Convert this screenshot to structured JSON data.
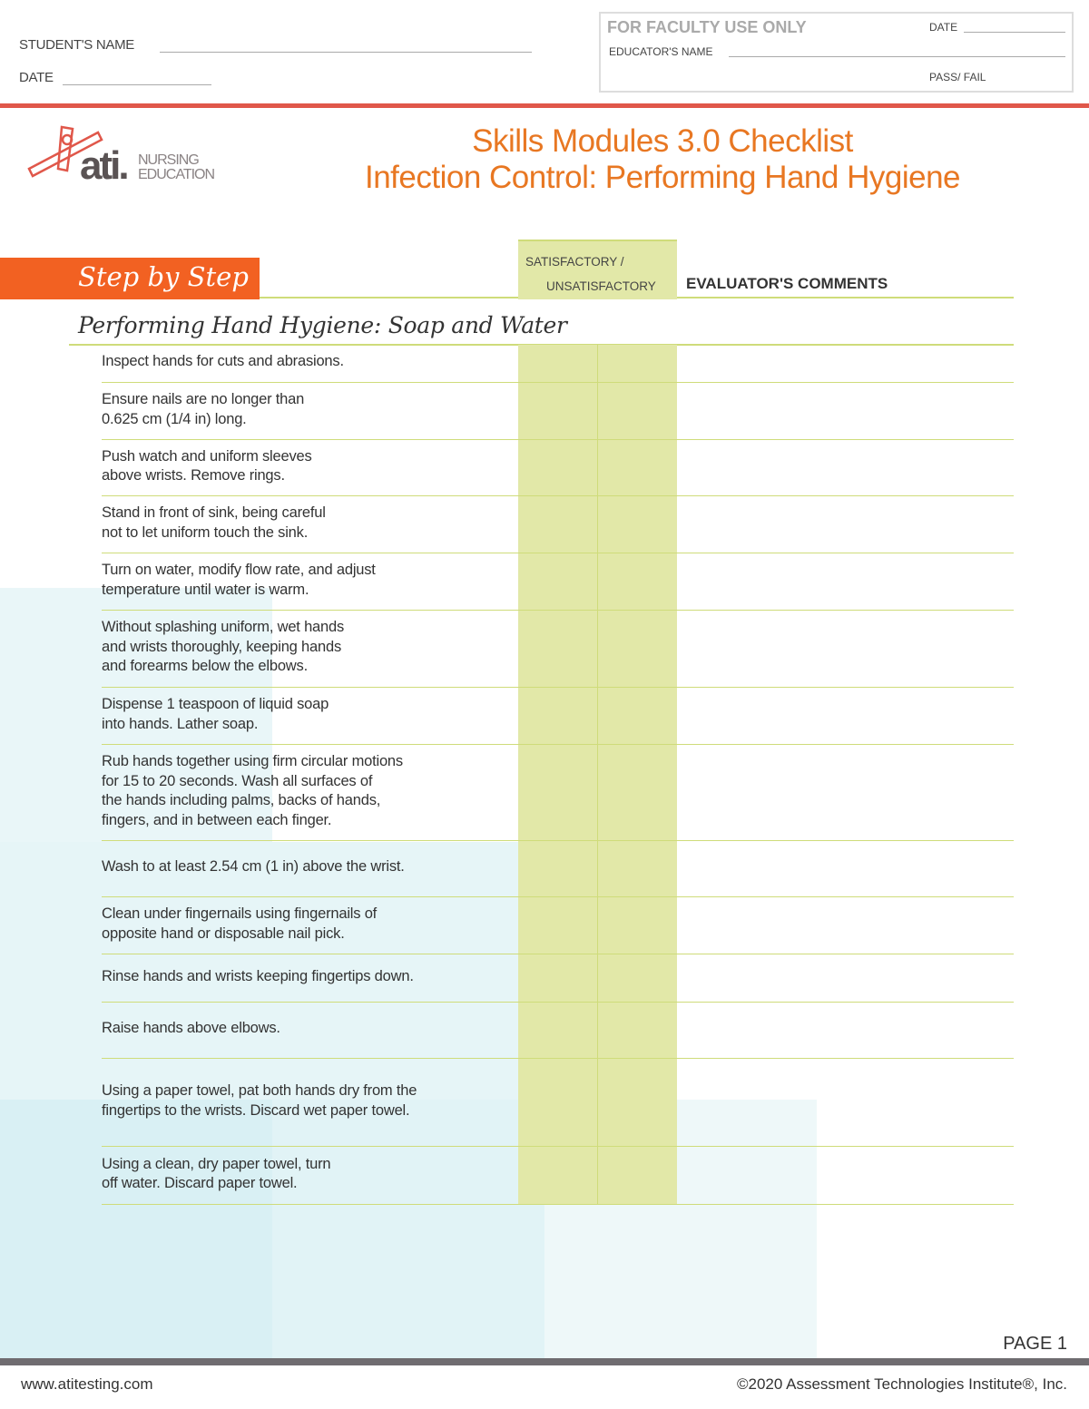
{
  "header": {
    "student_name_label": "STUDENT'S NAME",
    "date_label": "DATE",
    "faculty": {
      "title": "FOR FACULTY USE ONLY",
      "date_label": "DATE",
      "educator_label": "EDUCATOR'S NAME",
      "pass_fail_label": "PASS/ FAIL"
    }
  },
  "logo": {
    "text": "ati.",
    "nursing": "NURSING",
    "education": "EDUCATION"
  },
  "titles": {
    "line1": "Skills Modules 3.0 Checklist",
    "line2": "Infection Control: Performing Hand Hygiene"
  },
  "table": {
    "step_label": "Step by Step",
    "sat_label": "SATISFACTORY /",
    "unsat_label": "UNSATISFACTORY",
    "comments_label": "EVALUATOR'S COMMENTS",
    "section_title": "Performing Hand Hygiene: Soap and Water",
    "steps": [
      "Inspect hands for cuts and abrasions.",
      "Ensure nails are no longer than\n0.625 cm (1/4 in) long.",
      "Push watch and uniform sleeves\nabove wrists. Remove rings.",
      "Stand in front of sink, being careful\nnot to let uniform touch the sink.",
      "Turn on water, modify flow rate, and adjust\ntemperature until water is warm.",
      "Without splashing uniform, wet hands\nand wrists thoroughly, keeping hands\nand forearms below the elbows.",
      "Dispense 1 teaspoon of liquid soap\ninto hands. Lather soap.",
      "Rub hands together using firm circular motions\nfor 15 to 20 seconds. Wash all surfaces of\nthe hands including palms, backs of hands,\nfingers, and in between each finger.",
      "Wash to at least 2.54 cm (1 in) above the wrist.",
      "Clean under fingernails using fingernails of\nopposite hand or disposable nail pick.",
      "Rinse hands and wrists keeping fingertips down.",
      "Raise hands above elbows.",
      "Using a paper towel, pat both hands dry from the\nfingertips to the wrists. Discard wet paper towel.",
      "Using a clean, dry paper towel, turn\noff water. Discard paper towel."
    ]
  },
  "footer": {
    "page": "PAGE 1",
    "website": "www.atitesting.com",
    "copyright": "©2020 Assessment Technologies Institute®, Inc."
  },
  "colors": {
    "accent_orange": "#e87722",
    "step_orange": "#f26122",
    "red_rule": "#e0574a",
    "green": "#cfdc7a",
    "sat_fill": "#e2e8a8"
  }
}
